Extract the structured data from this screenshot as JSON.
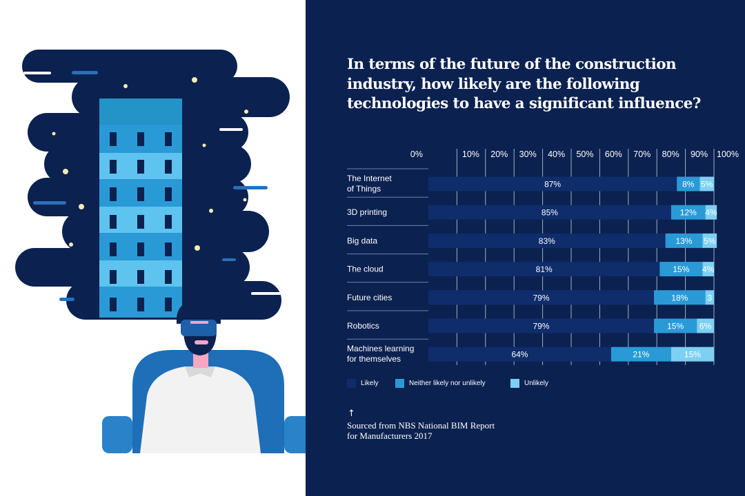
{
  "chart_data": {
    "type": "bar",
    "stacked": true,
    "orientation": "horizontal",
    "title": "In terms of the future of the construction industry, how likely are the following technologies to have a significant influence?",
    "x_ticks": [
      "0%",
      "10%",
      "20%",
      "30%",
      "40%",
      "50%",
      "60%",
      "70%",
      "80%",
      "90%",
      "100%"
    ],
    "xlim": [
      0,
      100
    ],
    "categories": [
      [
        "The Internet",
        "of Things"
      ],
      [
        "3D printing"
      ],
      [
        "Big data"
      ],
      [
        "The cloud"
      ],
      [
        "Future cities"
      ],
      [
        "Robotics"
      ],
      [
        "Machines learning",
        "for themselves"
      ]
    ],
    "series": [
      {
        "name": "Likely",
        "color": "#0f2c6b",
        "values": [
          87,
          85,
          83,
          81,
          79,
          79,
          64
        ],
        "labels": [
          "87%",
          "85%",
          "83%",
          "81%",
          "79%",
          "79%",
          "64%"
        ]
      },
      {
        "name": "Neither likely nor unlikely",
        "color": "#2a9ad6",
        "values": [
          8,
          12,
          13,
          15,
          18,
          15,
          21
        ],
        "labels": [
          "8%",
          "12%",
          "13%",
          "15%",
          "18%",
          "15%",
          "21%"
        ]
      },
      {
        "name": "Unlikely",
        "color": "#7dd0f2",
        "values": [
          5,
          4,
          5,
          4,
          3,
          6,
          15
        ],
        "labels": [
          "5%",
          "4%",
          "5%",
          "4%",
          "3",
          "6%",
          "15%"
        ]
      }
    ],
    "grid": true,
    "legend": "bottom-left"
  },
  "source": {
    "arrow": "↑",
    "lines": [
      "Sourced from NBS National BIM Report",
      "for Manufacturers 2017"
    ]
  },
  "illustration": {
    "name": "person-wearing-vr-headset-with-building-icon",
    "colors": {
      "cloud": "#0b2150",
      "building": "#2a9ad6",
      "building_light": "#5ec3ee",
      "windows": "#0b2150",
      "star": "#f7eab0",
      "chair": "#1e6fb8",
      "shirt": "#f2f2f2",
      "skin": "#f7a6c4"
    }
  },
  "colors": {
    "background_right": "#0b2150",
    "background_left": "#ffffff",
    "text": "#ffffff",
    "grid": "#9fb0cc"
  }
}
